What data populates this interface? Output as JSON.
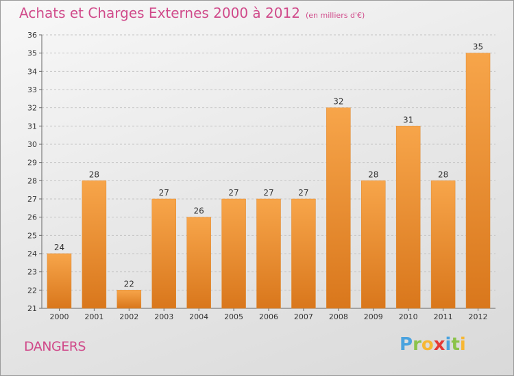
{
  "header": {
    "title": "Achats et Charges Externes 2000 à 2012",
    "subtitle": "(en milliers d'€)"
  },
  "footer": {
    "commune": "DANGERS",
    "logo_letters": [
      "P",
      "r",
      "o",
      "x",
      "i",
      "t",
      "i"
    ],
    "logo_colors": [
      "#4aa3df",
      "#8bc34a",
      "#f7b733",
      "#e53935",
      "#4aa3df",
      "#8bc34a",
      "#f7b733"
    ]
  },
  "colors": {
    "bar_light": "#f7a54a",
    "bar_dark": "#d9771c",
    "title": "#d04a8a",
    "grid": "#c4c4c4"
  },
  "chart_data": {
    "type": "bar",
    "title": "Achats et Charges Externes 2000 à 2012",
    "subtitle": "(en milliers d'€)",
    "categories": [
      "2000",
      "2001",
      "2002",
      "2003",
      "2004",
      "2005",
      "2006",
      "2007",
      "2008",
      "2009",
      "2010",
      "2011",
      "2012"
    ],
    "values": [
      24,
      28,
      22,
      27,
      26,
      27,
      27,
      27,
      32,
      28,
      31,
      28,
      35
    ],
    "ylim": [
      21,
      36
    ],
    "yticks": [
      21,
      22,
      23,
      24,
      25,
      26,
      27,
      28,
      29,
      30,
      31,
      32,
      33,
      34,
      35,
      36
    ],
    "grid": true,
    "data_labels": true
  }
}
